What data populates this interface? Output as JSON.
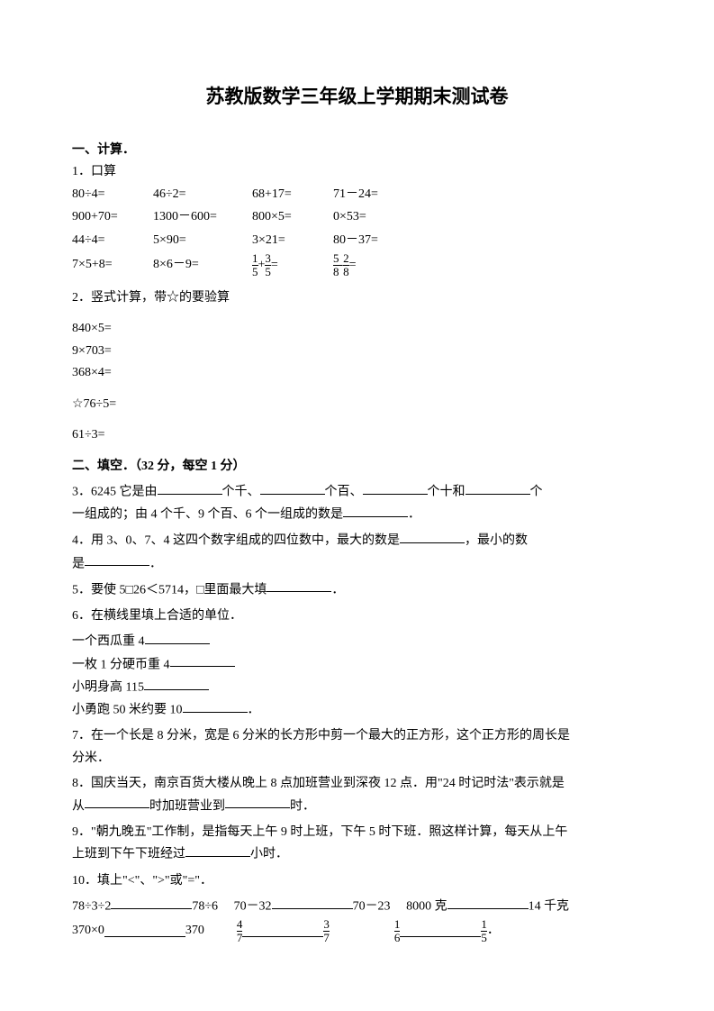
{
  "title": "苏教版数学三年级上学期期末测试卷",
  "sec1": {
    "head": "一、计算．",
    "q1": {
      "label": "1．口算",
      "rows": [
        [
          "80÷4=",
          "46÷2=",
          "68+17=",
          "71－24="
        ],
        [
          "900+70=",
          "1300－600=",
          "800×5=",
          "0×53="
        ],
        [
          "44÷4=",
          "5×90=",
          "3×21=",
          "80－37="
        ]
      ],
      "row4": {
        "c1": "7×5+8=",
        "c2": "8×6－9=",
        "f1_a_num": "1",
        "f1_a_den": "5",
        "f1_b_num": "3",
        "f1_b_den": "5",
        "f2_a_num": "5",
        "f2_a_den": "8",
        "f2_b_num": "2",
        "f2_b_den": "8",
        "plus": "+",
        "minus": "-",
        "eq": "="
      }
    },
    "q2": {
      "label": "2．竖式计算，带☆的要验算",
      "items": [
        "840×5=",
        "9×703=",
        "368×4=",
        "☆76÷5=",
        "61÷3="
      ]
    }
  },
  "sec2": {
    "head": "二、填空．（32 分，每空 1 分）",
    "q3": {
      "a": "3．6245 它是由",
      "b": "个千、",
      "c": "个百、",
      "d": "个十和",
      "e": "个",
      "line2a": "一组成的；由 4 个千、9 个百、6 个一组成的数是",
      "line2b": "．"
    },
    "q4": {
      "a": "4．用 3、0、7、4 这四个数字组成的四位数中，最大的数是",
      "b": "，最小的数",
      "c": "是",
      "d": "．"
    },
    "q5": {
      "a": "5．要使 5□26＜5714，□里面最大填",
      "b": "．"
    },
    "q6": {
      "head": "6．在横线里填上合适的单位．",
      "l1": "一个西瓜重 4",
      "l2": "一枚 1 分硬币重 4",
      "l3": "小明身高 115",
      "l4": "小勇跑 50 米约要 10",
      "dot": "．"
    },
    "q7": {
      "a": "7．在一个长是 8 分米，宽是 6 分米的长方形中剪一个最大的正方形，这个正方形的周长是",
      "b": "分米．"
    },
    "q8": {
      "a": "8．国庆当天，南京百货大楼从晚上 8 点加班营业到深夜 12 点．用\"24 时记时法\"表示就是",
      "b": "从",
      "c": "时加班营业到",
      "d": "时．"
    },
    "q9": {
      "a": "9．\"朝九晚五\"工作制，是指每天上午 9 时上班，下午 5 时下班．照这样计算，每天从上午",
      "b": "上班到下午下班经过",
      "c": "小时．"
    },
    "q10": {
      "head": "10．填上\"<\"、\">\"或\"=\"．",
      "r1_a": "78÷3÷2",
      "r1_b": "78÷6",
      "r1_c": "70－32",
      "r1_d": "70－23",
      "r1_e": "8000 克",
      "r1_f": "14 千克",
      "r2_a": "370×0",
      "r2_b": "370",
      "f1_num": "4",
      "f1_den": "7",
      "f2_num": "3",
      "f2_den": "7",
      "f3_num": "1",
      "f3_den": "6",
      "f4_num": "1",
      "f4_den": "5",
      "dot": "．"
    }
  }
}
